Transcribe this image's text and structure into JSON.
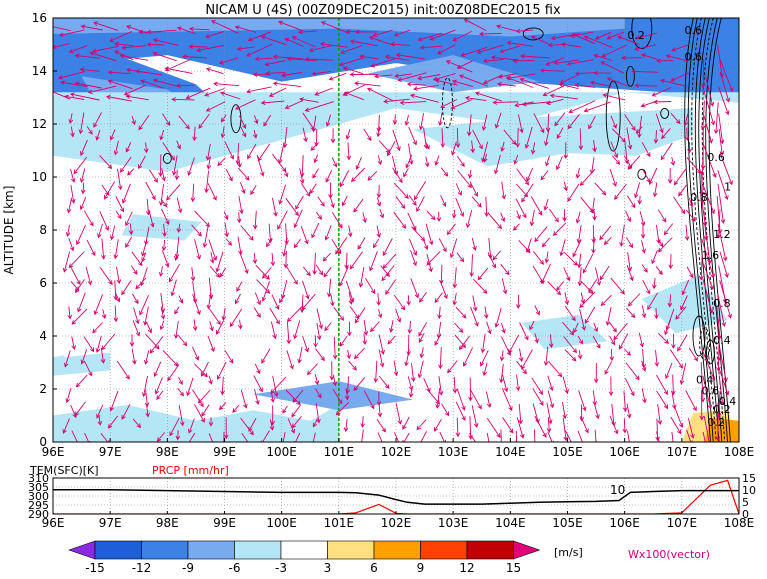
{
  "chart_data": [
    {
      "type": "heatmap",
      "title": "NICAM U (4S) (00Z09DEC2015) init:00Z08DEC2015 fix",
      "ylabel": "ALTITUDE [km]",
      "xlabel": "",
      "x_ticks": [
        "96E",
        "97E",
        "98E",
        "99E",
        "100E",
        "101E",
        "102E",
        "103E",
        "104E",
        "105E",
        "106E",
        "107E",
        "108E"
      ],
      "y_ticks": [
        "0",
        "2",
        "4",
        "6",
        "8",
        "10",
        "12",
        "14",
        "16"
      ],
      "xlim": [
        96,
        108
      ],
      "ylim": [
        0,
        16
      ],
      "grid": true,
      "reference_line_lon": 101,
      "contour_labels": [
        "0.2",
        "0.6",
        "0.6",
        "0.6",
        "0.8",
        "1",
        "1.2",
        "1.6",
        "0.8",
        "0.4",
        "0.4",
        "0.6",
        "0.4",
        "0.2",
        "0.2"
      ],
      "colorbar": {
        "ticks": [
          "-15",
          "-12",
          "-9",
          "-6",
          "-3",
          "3",
          "6",
          "9",
          "12",
          "15"
        ],
        "unit": "[m/s]",
        "colors": [
          "#8a2be2",
          "#1e5fd8",
          "#3c82e6",
          "#78aaf0",
          "#b4e6f5",
          "#ffffff",
          "#ffe080",
          "#ffa000",
          "#ff4000",
          "#c00000",
          "#e0007a"
        ]
      },
      "vector_label": "Wx100(vector)"
    },
    {
      "type": "line",
      "legend": [
        "TEM(SFC)[K]",
        "PRCP [mm/hr]"
      ],
      "series_colors": [
        "#000000",
        "#ff0000"
      ],
      "x_ticks": [
        "96E",
        "97E",
        "98E",
        "99E",
        "100E",
        "101E",
        "102E",
        "103E",
        "104E",
        "105E",
        "106E",
        "107E",
        "108E"
      ],
      "left_ticks": [
        "310",
        "305",
        "300",
        "295",
        "290"
      ],
      "right_ticks": [
        "15",
        "10",
        "5",
        "0"
      ],
      "left_ylim": [
        290,
        310
      ],
      "right_ylim": [
        0,
        15
      ],
      "annotation": "10",
      "x": [
        96,
        97,
        98,
        99,
        100,
        100.8,
        101,
        101.3,
        101.7,
        102,
        102.2,
        102.5,
        103,
        103.5,
        104,
        104.5,
        105,
        105.5,
        105.9,
        106.1,
        106.5,
        107,
        107.5,
        107.8,
        108
      ],
      "series": [
        {
          "name": "TEM(SFC)[K]",
          "values": [
            303.5,
            303.5,
            303,
            302.5,
            302,
            302,
            302,
            301.8,
            300.5,
            298,
            296.5,
            295.5,
            295.5,
            295.5,
            296,
            296.5,
            296.8,
            297,
            297.5,
            302,
            302.5,
            303,
            303,
            303,
            303
          ]
        },
        {
          "name": "PRCP [mm/hr]",
          "values": [
            0,
            0,
            0,
            0,
            0,
            0,
            0,
            0.5,
            4,
            0.3,
            0,
            0,
            0,
            0,
            0,
            0,
            0,
            0,
            0,
            0,
            0,
            0.5,
            12,
            14,
            0
          ]
        }
      ]
    }
  ]
}
